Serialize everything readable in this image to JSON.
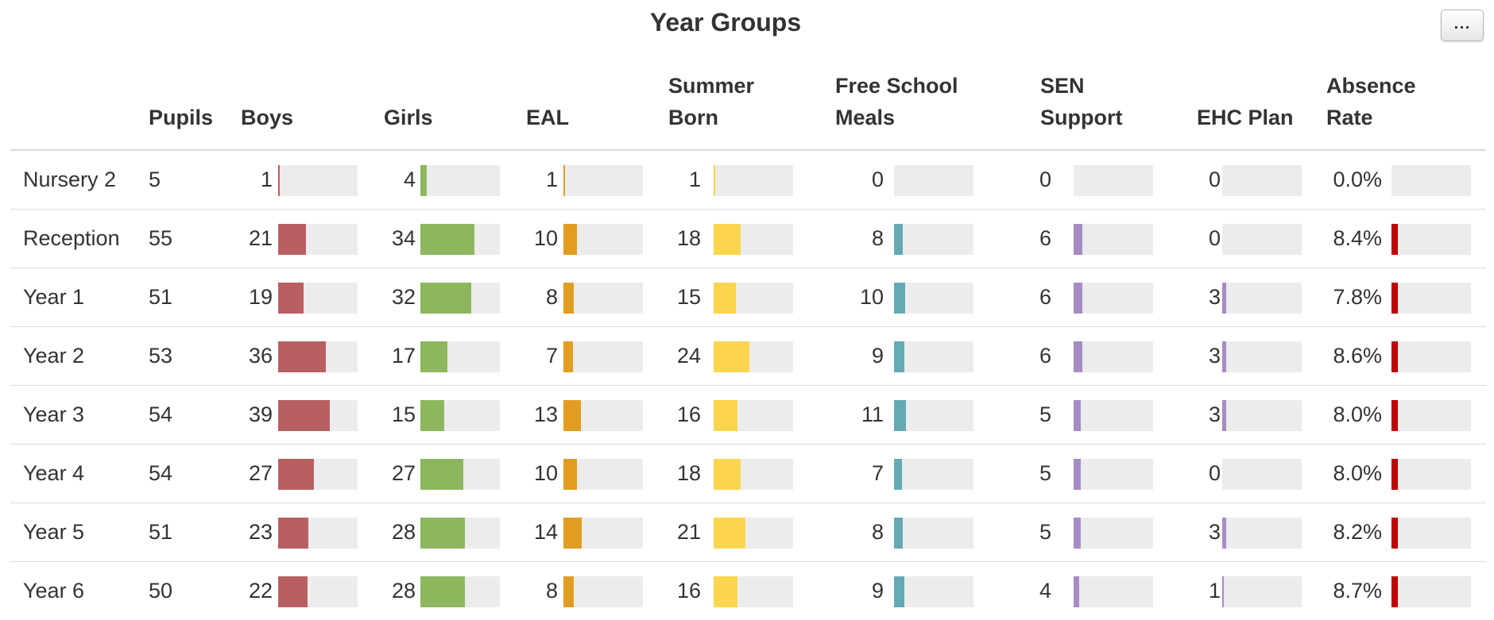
{
  "title": "Year Groups",
  "menu_button": "...",
  "colors": {
    "boys": "#b85f62",
    "girls": "#8db75e",
    "eal": "#e19d22",
    "summer": "#fbd54e",
    "fsm": "#64a9b4",
    "sen": "#a78bc4",
    "ehc": "#a78bc4",
    "absence": "#c10000",
    "track": "#ececec"
  },
  "headers": {
    "pupils": "Pupils",
    "boys": "Boys",
    "girls": "Girls",
    "eal": "EAL",
    "summer_1": "Summer",
    "summer_2": "Born",
    "fsm_1": "Free School",
    "fsm_2": "Meals",
    "sen_1": "SEN",
    "sen_2": "Support",
    "ehc": "EHC Plan",
    "absence_1": "Absence",
    "absence_2": "Rate"
  },
  "rows": [
    {
      "year": "Nursery 2",
      "pupils": "5",
      "boys": "1",
      "girls": "4",
      "eal": "1",
      "summer": "1",
      "fsm": "0",
      "sen": "0",
      "ehc": "0",
      "absence": "0.0%"
    },
    {
      "year": "Reception",
      "pupils": "55",
      "boys": "21",
      "girls": "34",
      "eal": "10",
      "summer": "18",
      "fsm": "8",
      "sen": "6",
      "ehc": "0",
      "absence": "8.4%"
    },
    {
      "year": "Year 1",
      "pupils": "51",
      "boys": "19",
      "girls": "32",
      "eal": "8",
      "summer": "15",
      "fsm": "10",
      "sen": "6",
      "ehc": "3",
      "absence": "7.8%"
    },
    {
      "year": "Year 2",
      "pupils": "53",
      "boys": "36",
      "girls": "17",
      "eal": "7",
      "summer": "24",
      "fsm": "9",
      "sen": "6",
      "ehc": "3",
      "absence": "8.6%"
    },
    {
      "year": "Year 3",
      "pupils": "54",
      "boys": "39",
      "girls": "15",
      "eal": "13",
      "summer": "16",
      "fsm": "11",
      "sen": "5",
      "ehc": "3",
      "absence": "8.0%"
    },
    {
      "year": "Year 4",
      "pupils": "54",
      "boys": "27",
      "girls": "27",
      "eal": "10",
      "summer": "18",
      "fsm": "7",
      "sen": "5",
      "ehc": "0",
      "absence": "8.0%"
    },
    {
      "year": "Year 5",
      "pupils": "51",
      "boys": "23",
      "girls": "28",
      "eal": "14",
      "summer": "21",
      "fsm": "8",
      "sen": "5",
      "ehc": "3",
      "absence": "8.2%"
    },
    {
      "year": "Year 6",
      "pupils": "50",
      "boys": "22",
      "girls": "28",
      "eal": "8",
      "summer": "16",
      "fsm": "9",
      "sen": "4",
      "ehc": "1",
      "absence": "8.7%"
    }
  ]
}
